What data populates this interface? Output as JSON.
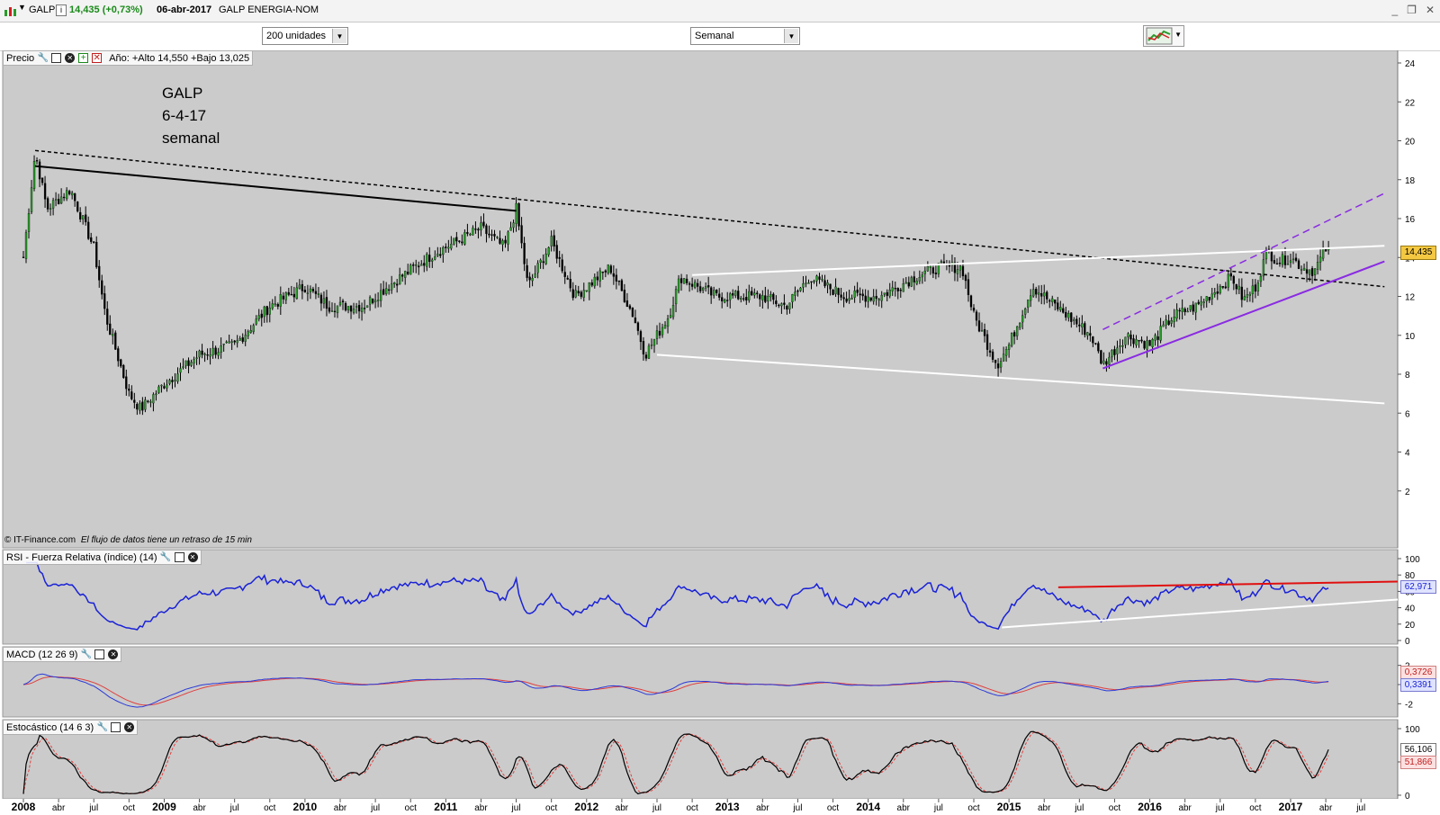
{
  "header": {
    "symbol": "GALP",
    "price_change": "14,435 (+0,73%)",
    "date": "06-abr-2017",
    "name": "GALP ENERGIA-NOM",
    "minimize_glyph": "_",
    "restore_glyph": "❐",
    "close_glyph": "✕"
  },
  "toolbar": {
    "units_select": "200 unidades",
    "period_select": "Semanal"
  },
  "price_panel": {
    "label": "Precio",
    "stats": "Año: +Alto 14,550 +Bajo 13,025",
    "annotation": [
      "GALP",
      "6-4-17",
      "semanal"
    ],
    "copyright": "© IT-Finance.com",
    "delay_note": "El flujo de datos tiene un retraso de 15 min",
    "last_value_tag": "14,435",
    "y_ticks": [
      "24",
      "22",
      "20",
      "18",
      "16",
      "14",
      "12",
      "10",
      "8",
      "6",
      "4",
      "2"
    ]
  },
  "rsi_panel": {
    "label": "RSI - Fuerza Relativa (índice) (14)",
    "value_tag": "62,971",
    "y_ticks": [
      "100",
      "80",
      "60",
      "40",
      "20",
      "0"
    ]
  },
  "macd_panel": {
    "label": "MACD (12 26 9)",
    "value_tags": [
      "0,3726",
      "0,3391"
    ],
    "y_ticks": [
      "2",
      "0",
      "-2"
    ]
  },
  "stoch_panel": {
    "label": "Estocástico (14 6 3)",
    "value_tags": [
      "56,106",
      "51,866"
    ],
    "y_ticks": [
      "100",
      "50",
      "0"
    ]
  },
  "x_axis": {
    "labels": [
      "2008",
      "abr",
      "jul",
      "oct",
      "2009",
      "abr",
      "jul",
      "oct",
      "2010",
      "abr",
      "jul",
      "oct",
      "2011",
      "abr",
      "jul",
      "oct",
      "2012",
      "abr",
      "jul",
      "oct",
      "2013",
      "abr",
      "jul",
      "oct",
      "2014",
      "abr",
      "jul",
      "oct",
      "2015",
      "abr",
      "jul",
      "oct",
      "2016",
      "abr",
      "jul",
      "oct",
      "2017",
      "abr",
      "jul"
    ],
    "bold_labels": [
      "2008",
      "2009",
      "2010",
      "2011",
      "2012",
      "2013",
      "2014",
      "2015",
      "2016",
      "2017"
    ]
  },
  "colors": {
    "chart_bg": "#cbcbcb",
    "rsi_line": "#1a22d6",
    "macd_line": "#2b3ad8",
    "signal_line": "#e04040",
    "trend_red": "#e01010",
    "trend_purple": "#8a2be2",
    "trend_white": "#ffffff",
    "trend_black": "#000000",
    "price_tag_bg": "#f5c842"
  },
  "icons": [
    "chart-icon",
    "info-icon",
    "wrench-icon",
    "window-icon",
    "close-circle-icon",
    "copy-icon",
    "delete-icon",
    "chart-tool-icon"
  ],
  "chart_data": {
    "type": "candlestick",
    "title": "GALP",
    "timeframe": "weekly",
    "x_range": [
      "2008-01",
      "2017-04"
    ],
    "ylim": [
      0,
      24
    ],
    "last_close": 14.435,
    "anchors": [
      {
        "date": "2008-01",
        "price": 14.0
      },
      {
        "date": "2008-02",
        "price": 19.4
      },
      {
        "date": "2008-03",
        "price": 16.5
      },
      {
        "date": "2008-05",
        "price": 17.5
      },
      {
        "date": "2008-07",
        "price": 14.5
      },
      {
        "date": "2008-08",
        "price": 11.0
      },
      {
        "date": "2008-10",
        "price": 7.0
      },
      {
        "date": "2008-11",
        "price": 6.2
      },
      {
        "date": "2009-01",
        "price": 7.5
      },
      {
        "date": "2009-04",
        "price": 9.0
      },
      {
        "date": "2009-07",
        "price": 9.5
      },
      {
        "date": "2009-10",
        "price": 11.5
      },
      {
        "date": "2010-01",
        "price": 12.5
      },
      {
        "date": "2010-03",
        "price": 11.5
      },
      {
        "date": "2010-06",
        "price": 11.5
      },
      {
        "date": "2010-08",
        "price": 12.5
      },
      {
        "date": "2010-12",
        "price": 14.2
      },
      {
        "date": "2011-04",
        "price": 15.5
      },
      {
        "date": "2011-06",
        "price": 14.5
      },
      {
        "date": "2011-07",
        "price": 16.5
      },
      {
        "date": "2011-08",
        "price": 12.5
      },
      {
        "date": "2011-10",
        "price": 14.8
      },
      {
        "date": "2011-12",
        "price": 12.0
      },
      {
        "date": "2012-03",
        "price": 13.5
      },
      {
        "date": "2012-05",
        "price": 11.0
      },
      {
        "date": "2012-06",
        "price": 9.0
      },
      {
        "date": "2012-08",
        "price": 11.0
      },
      {
        "date": "2012-09",
        "price": 13.0
      },
      {
        "date": "2012-12",
        "price": 12.0
      },
      {
        "date": "2013-04",
        "price": 12.0
      },
      {
        "date": "2013-06",
        "price": 11.5
      },
      {
        "date": "2013-08",
        "price": 13.0
      },
      {
        "date": "2013-11",
        "price": 12.0
      },
      {
        "date": "2014-02",
        "price": 12.0
      },
      {
        "date": "2014-05",
        "price": 13.0
      },
      {
        "date": "2014-07",
        "price": 13.5
      },
      {
        "date": "2014-09",
        "price": 13.5
      },
      {
        "date": "2014-10",
        "price": 11.0
      },
      {
        "date": "2014-12",
        "price": 8.5
      },
      {
        "date": "2015-01",
        "price": 9.5
      },
      {
        "date": "2015-02",
        "price": 11.0
      },
      {
        "date": "2015-03",
        "price": 12.5
      },
      {
        "date": "2015-05",
        "price": 11.5
      },
      {
        "date": "2015-08",
        "price": 10.0
      },
      {
        "date": "2015-09",
        "price": 8.5
      },
      {
        "date": "2015-11",
        "price": 10.0
      },
      {
        "date": "2016-01",
        "price": 9.5
      },
      {
        "date": "2016-03",
        "price": 11.0
      },
      {
        "date": "2016-05",
        "price": 11.5
      },
      {
        "date": "2016-07",
        "price": 12.5
      },
      {
        "date": "2016-08",
        "price": 13.0
      },
      {
        "date": "2016-09",
        "price": 11.8
      },
      {
        "date": "2016-10",
        "price": 12.5
      },
      {
        "date": "2016-11",
        "price": 14.3
      },
      {
        "date": "2016-12",
        "price": 13.8
      },
      {
        "date": "2017-01",
        "price": 14.0
      },
      {
        "date": "2017-02",
        "price": 13.5
      },
      {
        "date": "2017-03",
        "price": 13.3
      },
      {
        "date": "2017-04",
        "price": 14.435
      }
    ],
    "trendlines": [
      {
        "style": "dotted",
        "color": "#000000",
        "from": {
          "date": "2008-02",
          "price": 19.5
        },
        "to": {
          "date": "2017-09",
          "price": 12.5
        }
      },
      {
        "style": "solid",
        "color": "#000000",
        "from": {
          "date": "2008-02",
          "price": 18.7
        },
        "to": {
          "date": "2011-07",
          "price": 16.4
        }
      },
      {
        "style": "solid",
        "color": "#ffffff",
        "from": {
          "date": "2012-10",
          "price": 13.1
        },
        "to": {
          "date": "2017-09",
          "price": 14.6
        }
      },
      {
        "style": "solid",
        "color": "#ffffff",
        "from": {
          "date": "2012-07",
          "price": 9.0
        },
        "to": {
          "date": "2017-09",
          "price": 6.5
        }
      },
      {
        "style": "solid",
        "color": "#8a2be2",
        "from": {
          "date": "2015-09",
          "price": 8.3
        },
        "to": {
          "date": "2017-09",
          "price": 13.8
        }
      },
      {
        "style": "dashed",
        "color": "#8a2be2",
        "from": {
          "date": "2015-09",
          "price": 10.3
        },
        "to": {
          "date": "2017-09",
          "price": 17.3
        }
      }
    ]
  }
}
